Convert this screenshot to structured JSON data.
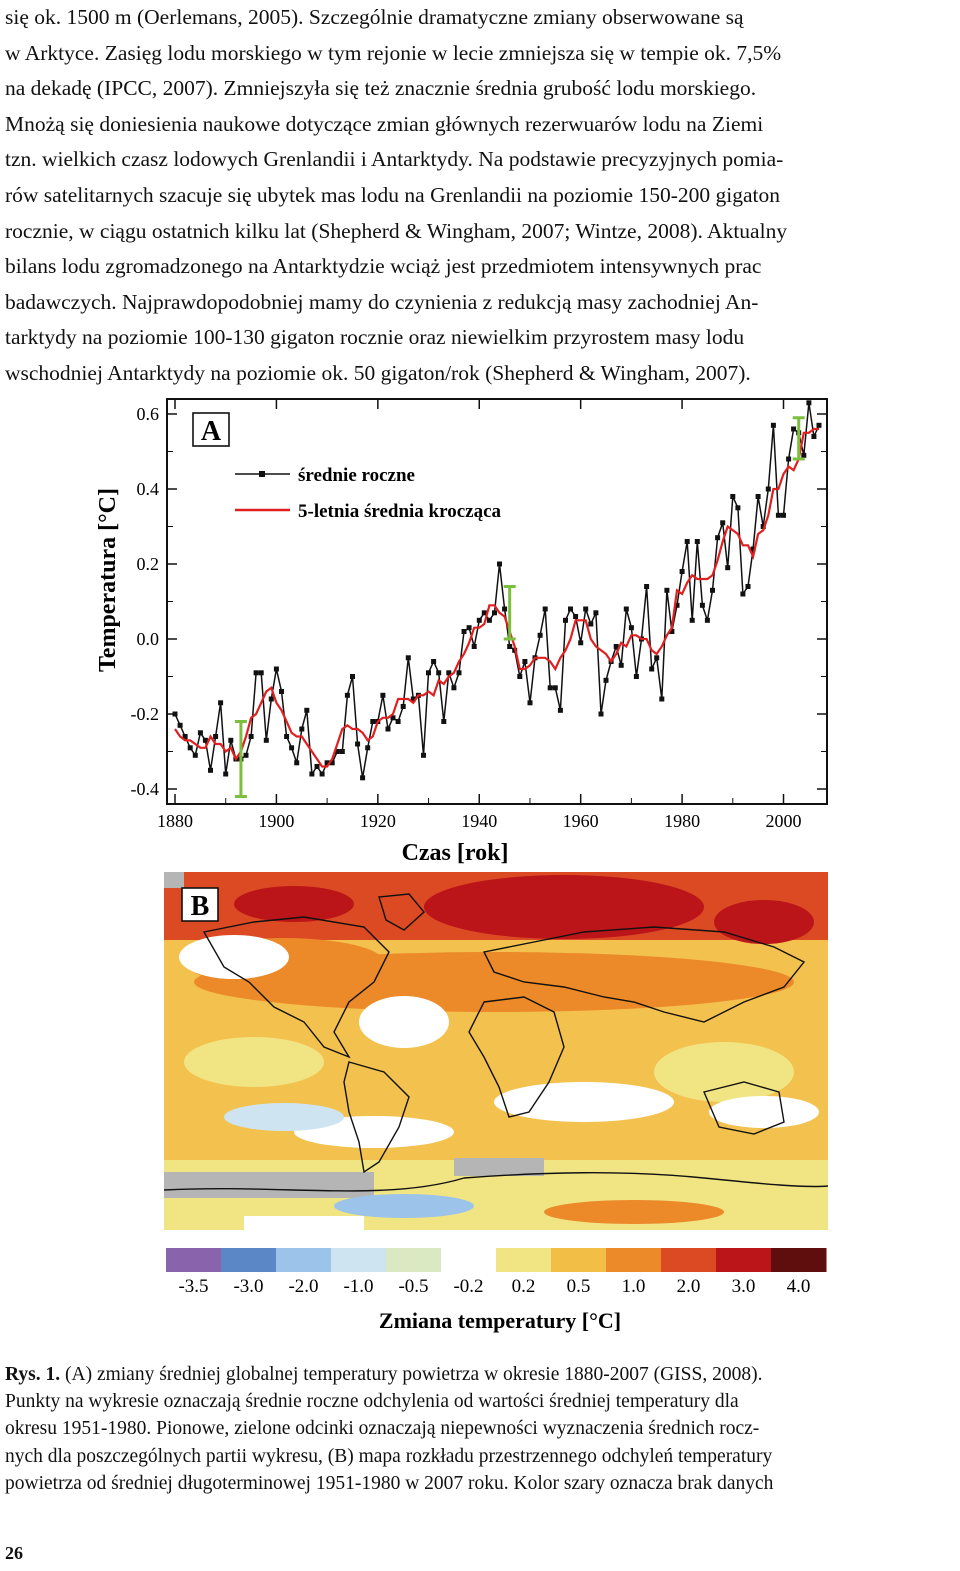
{
  "body_text": [
    "się ok. 1500 m (Oerlemans, 2005). Szczególnie dramatyczne zmiany obserwowane są",
    "w Arktyce. Zasięg lodu morskiego w tym rejonie w lecie zmniejsza się w tempie ok. 7,5%",
    "na dekadę (IPCC, 2007). Zmniejszyła się też znacznie średnia grubość lodu morskiego.",
    "Mnożą się doniesienia naukowe dotyczące zmian głównych rezerwuarów lodu na Ziemi",
    "tzn. wielkich czasz lodowych Grenlandii i Antarktydy. Na podstawie precyzyjnych pomia-",
    "rów satelitarnych szacuje się ubytek mas lodu na Grenlandii na poziomie 150-200 gigaton",
    "rocznie, w ciągu ostatnich kilku lat (Shepherd & Wingham, 2007; Wintze, 2008). Aktualny",
    "bilans lodu zgromadzonego na Antarktydzie wciąż jest przedmiotem intensywnych prac",
    "badawczych. Najprawdopodobniej mamy do czynienia z redukcją masy zachodniej An-",
    "tarktydy na poziomie 100-130 gigaton rocznie oraz niewielkim przyrostem masy lodu",
    "wschodniej Antarktydy na poziomie ok. 50 gigaton/rok (Shepherd & Wingham, 2007)."
  ],
  "chart_data": [
    {
      "type": "line",
      "panel_label": "A",
      "xlabel": "Czas [rok]",
      "ylabel": "Temperatura [°C]",
      "xlim": [
        1880,
        2007
      ],
      "ylim": [
        -0.4,
        0.6
      ],
      "xticks": [
        "1880",
        "1900",
        "1920",
        "1940",
        "1960",
        "1980",
        "2000"
      ],
      "yticks": [
        "0.6",
        "0.4",
        "0.2",
        "0.0",
        "-0.2",
        "-0.4"
      ],
      "legend": [
        "średnie roczne",
        "5-letnia średnia krocząca"
      ],
      "legend_placement": "top-left",
      "series_colors": [
        "#111111",
        "#e02020"
      ],
      "x": [
        1880,
        1881,
        1882,
        1883,
        1884,
        1885,
        1886,
        1887,
        1888,
        1889,
        1890,
        1891,
        1892,
        1893,
        1894,
        1895,
        1896,
        1897,
        1898,
        1899,
        1900,
        1901,
        1902,
        1903,
        1904,
        1905,
        1906,
        1907,
        1908,
        1909,
        1910,
        1911,
        1912,
        1913,
        1914,
        1915,
        1916,
        1917,
        1918,
        1919,
        1920,
        1921,
        1922,
        1923,
        1924,
        1925,
        1926,
        1927,
        1928,
        1929,
        1930,
        1931,
        1932,
        1933,
        1934,
        1935,
        1936,
        1937,
        1938,
        1939,
        1940,
        1941,
        1942,
        1943,
        1944,
        1945,
        1946,
        1947,
        1948,
        1949,
        1950,
        1951,
        1952,
        1953,
        1954,
        1955,
        1956,
        1957,
        1958,
        1959,
        1960,
        1961,
        1962,
        1963,
        1964,
        1965,
        1966,
        1967,
        1968,
        1969,
        1970,
        1971,
        1972,
        1973,
        1974,
        1975,
        1976,
        1977,
        1978,
        1979,
        1980,
        1981,
        1982,
        1983,
        1984,
        1985,
        1986,
        1987,
        1988,
        1989,
        1990,
        1991,
        1992,
        1993,
        1994,
        1995,
        1996,
        1997,
        1998,
        1999,
        2000,
        2001,
        2002,
        2003,
        2004,
        2005,
        2006,
        2007
      ],
      "series": [
        {
          "name": "średnie roczne",
          "values": [
            -0.2,
            -0.23,
            -0.26,
            -0.29,
            -0.31,
            -0.25,
            -0.27,
            -0.35,
            -0.26,
            -0.17,
            -0.36,
            -0.27,
            -0.32,
            -0.32,
            -0.31,
            -0.26,
            -0.09,
            -0.09,
            -0.27,
            -0.16,
            -0.08,
            -0.14,
            -0.26,
            -0.29,
            -0.33,
            -0.24,
            -0.19,
            -0.36,
            -0.34,
            -0.36,
            -0.33,
            -0.33,
            -0.3,
            -0.3,
            -0.15,
            -0.1,
            -0.28,
            -0.37,
            -0.29,
            -0.22,
            -0.22,
            -0.15,
            -0.24,
            -0.21,
            -0.22,
            -0.18,
            -0.05,
            -0.16,
            -0.15,
            -0.31,
            -0.09,
            -0.06,
            -0.09,
            -0.22,
            -0.09,
            -0.13,
            -0.09,
            0.02,
            0.03,
            -0.02,
            0.05,
            0.07,
            0.05,
            0.07,
            0.2,
            0.08,
            -0.02,
            -0.03,
            -0.1,
            -0.06,
            -0.17,
            -0.05,
            0.01,
            0.08,
            -0.13,
            -0.13,
            -0.19,
            0.05,
            0.08,
            0.06,
            -0.01,
            0.08,
            0.04,
            0.07,
            -0.2,
            -0.11,
            -0.06,
            -0.02,
            -0.07,
            0.08,
            0.03,
            -0.1,
            0.0,
            0.14,
            -0.08,
            -0.05,
            -0.16,
            0.13,
            0.02,
            0.09,
            0.18,
            0.26,
            0.05,
            0.26,
            0.09,
            0.05,
            0.13,
            0.27,
            0.31,
            0.19,
            0.38,
            0.35,
            0.12,
            0.14,
            0.24,
            0.38,
            0.3,
            0.4,
            0.57,
            0.33,
            0.33,
            0.48,
            0.56,
            0.55,
            0.49,
            0.63,
            0.54,
            0.57
          ]
        },
        {
          "name": "5-letnia średnia krocząca",
          "values": [
            -0.24,
            -0.26,
            -0.27,
            -0.27,
            -0.28,
            -0.29,
            -0.29,
            -0.26,
            -0.28,
            -0.28,
            -0.3,
            -0.29,
            -0.32,
            -0.3,
            -0.26,
            -0.21,
            -0.2,
            -0.17,
            -0.14,
            -0.13,
            -0.17,
            -0.19,
            -0.22,
            -0.25,
            -0.26,
            -0.26,
            -0.28,
            -0.3,
            -0.32,
            -0.34,
            -0.34,
            -0.32,
            -0.28,
            -0.24,
            -0.23,
            -0.24,
            -0.24,
            -0.25,
            -0.27,
            -0.26,
            -0.22,
            -0.21,
            -0.21,
            -0.2,
            -0.16,
            -0.16,
            -0.16,
            -0.17,
            -0.15,
            -0.15,
            -0.14,
            -0.15,
            -0.11,
            -0.12,
            -0.1,
            -0.09,
            -0.06,
            -0.04,
            -0.01,
            0.03,
            0.03,
            0.04,
            0.09,
            0.09,
            0.07,
            0.06,
            0.02,
            -0.02,
            -0.08,
            -0.08,
            -0.07,
            -0.05,
            -0.05,
            -0.05,
            -0.06,
            -0.08,
            -0.05,
            -0.03,
            -0.0,
            0.05,
            0.05,
            0.05,
            0.0,
            -0.02,
            -0.03,
            -0.04,
            -0.06,
            -0.04,
            -0.01,
            -0.02,
            0.01,
            0.01,
            0.0,
            -0.0,
            -0.03,
            -0.04,
            -0.02,
            0.01,
            0.03,
            0.13,
            0.12,
            0.15,
            0.17,
            0.16,
            0.16,
            0.16,
            0.17,
            0.21,
            0.26,
            0.3,
            0.29,
            0.28,
            0.25,
            0.25,
            0.22,
            0.28,
            0.29,
            0.33,
            0.4,
            0.4,
            0.44,
            0.46,
            0.45,
            0.48,
            0.55,
            0.55,
            0.56,
            0.56
          ]
        }
      ],
      "uncertainty_bars": [
        {
          "x": 1893,
          "low": -0.42,
          "high": -0.22
        },
        {
          "x": 1946,
          "low": 0.0,
          "high": 0.14
        },
        {
          "x": 2003,
          "low": 0.48,
          "high": 0.59
        }
      ]
    },
    {
      "type": "heatmap",
      "panel_label": "B",
      "xlabel": "Zmiana temperatury [°C]",
      "colorbar_ticks": [
        "-3.5",
        "-3.0",
        "-2.0",
        "-1.0",
        "-0.5",
        "-0.2",
        "0.2",
        "0.5",
        "1.0",
        "2.0",
        "3.0",
        "4.0"
      ],
      "colorbar_colors": [
        "#8a63ad",
        "#5b87c6",
        "#9cc3ea",
        "#cfe4f1",
        "#dbe9c2",
        "#ffffff",
        "#f1e483",
        "#f2be45",
        "#ec8a2a",
        "#dc4a23",
        "#bb1419",
        "#5f0d0d"
      ],
      "no_data_color": "#b5b5b5"
    }
  ],
  "caption": {
    "label": "Rys. 1.",
    "lines": [
      " (A) zmiany średniej globalnej temperatury powietrza w okresie 1880-2007 (GISS, 2008).",
      "Punkty na wykresie oznaczają średnie roczne odchylenia od wartości średniej temperatury dla",
      "okresu 1951-1980. Pionowe, zielone odcinki oznaczają niepewności wyznaczenia średnich rocz-",
      "nych dla poszczególnych partii wykresu, (B) mapa rozkładu przestrzennego odchyleń temperatury",
      "powietrza od średniej długoterminowej 1951-1980 w 2007 roku. Kolor szary oznacza brak danych"
    ]
  },
  "page_number": "26"
}
